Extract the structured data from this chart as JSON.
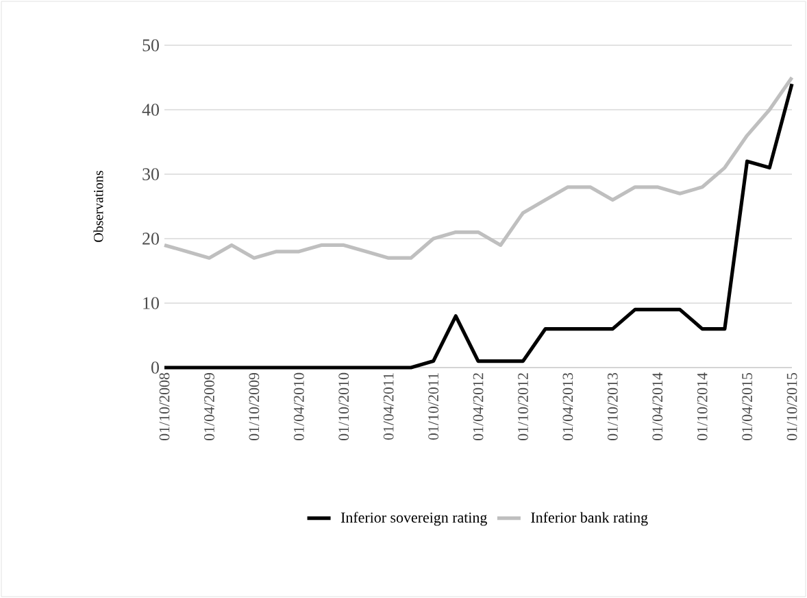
{
  "chart_data": {
    "type": "line",
    "ylabel": "Observations",
    "categories": [
      "01/10/2008",
      null,
      "01/04/2009",
      null,
      "01/10/2009",
      null,
      "01/04/2010",
      null,
      "01/10/2010",
      null,
      "01/04/2011",
      null,
      "01/10/2011",
      null,
      "01/04/2012",
      null,
      "01/10/2012",
      null,
      "01/04/2013",
      null,
      "01/10/2013",
      null,
      "01/04/2014",
      null,
      "01/10/2014",
      null,
      "01/04/2015",
      null,
      "01/10/2015"
    ],
    "series": [
      {
        "name": "Inferior sovereign rating",
        "color": "#000000",
        "values": [
          0,
          0,
          0,
          0,
          0,
          0,
          0,
          0,
          0,
          0,
          0,
          0,
          1,
          8,
          1,
          1,
          1,
          6,
          6,
          6,
          6,
          9,
          9,
          9,
          6,
          6,
          32,
          31,
          44
        ]
      },
      {
        "name": "Inferior bank rating",
        "color": "#bfbfbf",
        "values": [
          19,
          18,
          17,
          19,
          17,
          18,
          18,
          19,
          19,
          18,
          17,
          17,
          20,
          21,
          21,
          19,
          24,
          26,
          28,
          28,
          26,
          28,
          28,
          27,
          28,
          31,
          36,
          40,
          45
        ]
      }
    ],
    "ylim": [
      0,
      50
    ],
    "yticks": [
      0,
      10,
      20,
      30,
      40,
      50
    ],
    "grid": "y",
    "legend": "bottom",
    "marker": "none",
    "line_style": "solid"
  }
}
